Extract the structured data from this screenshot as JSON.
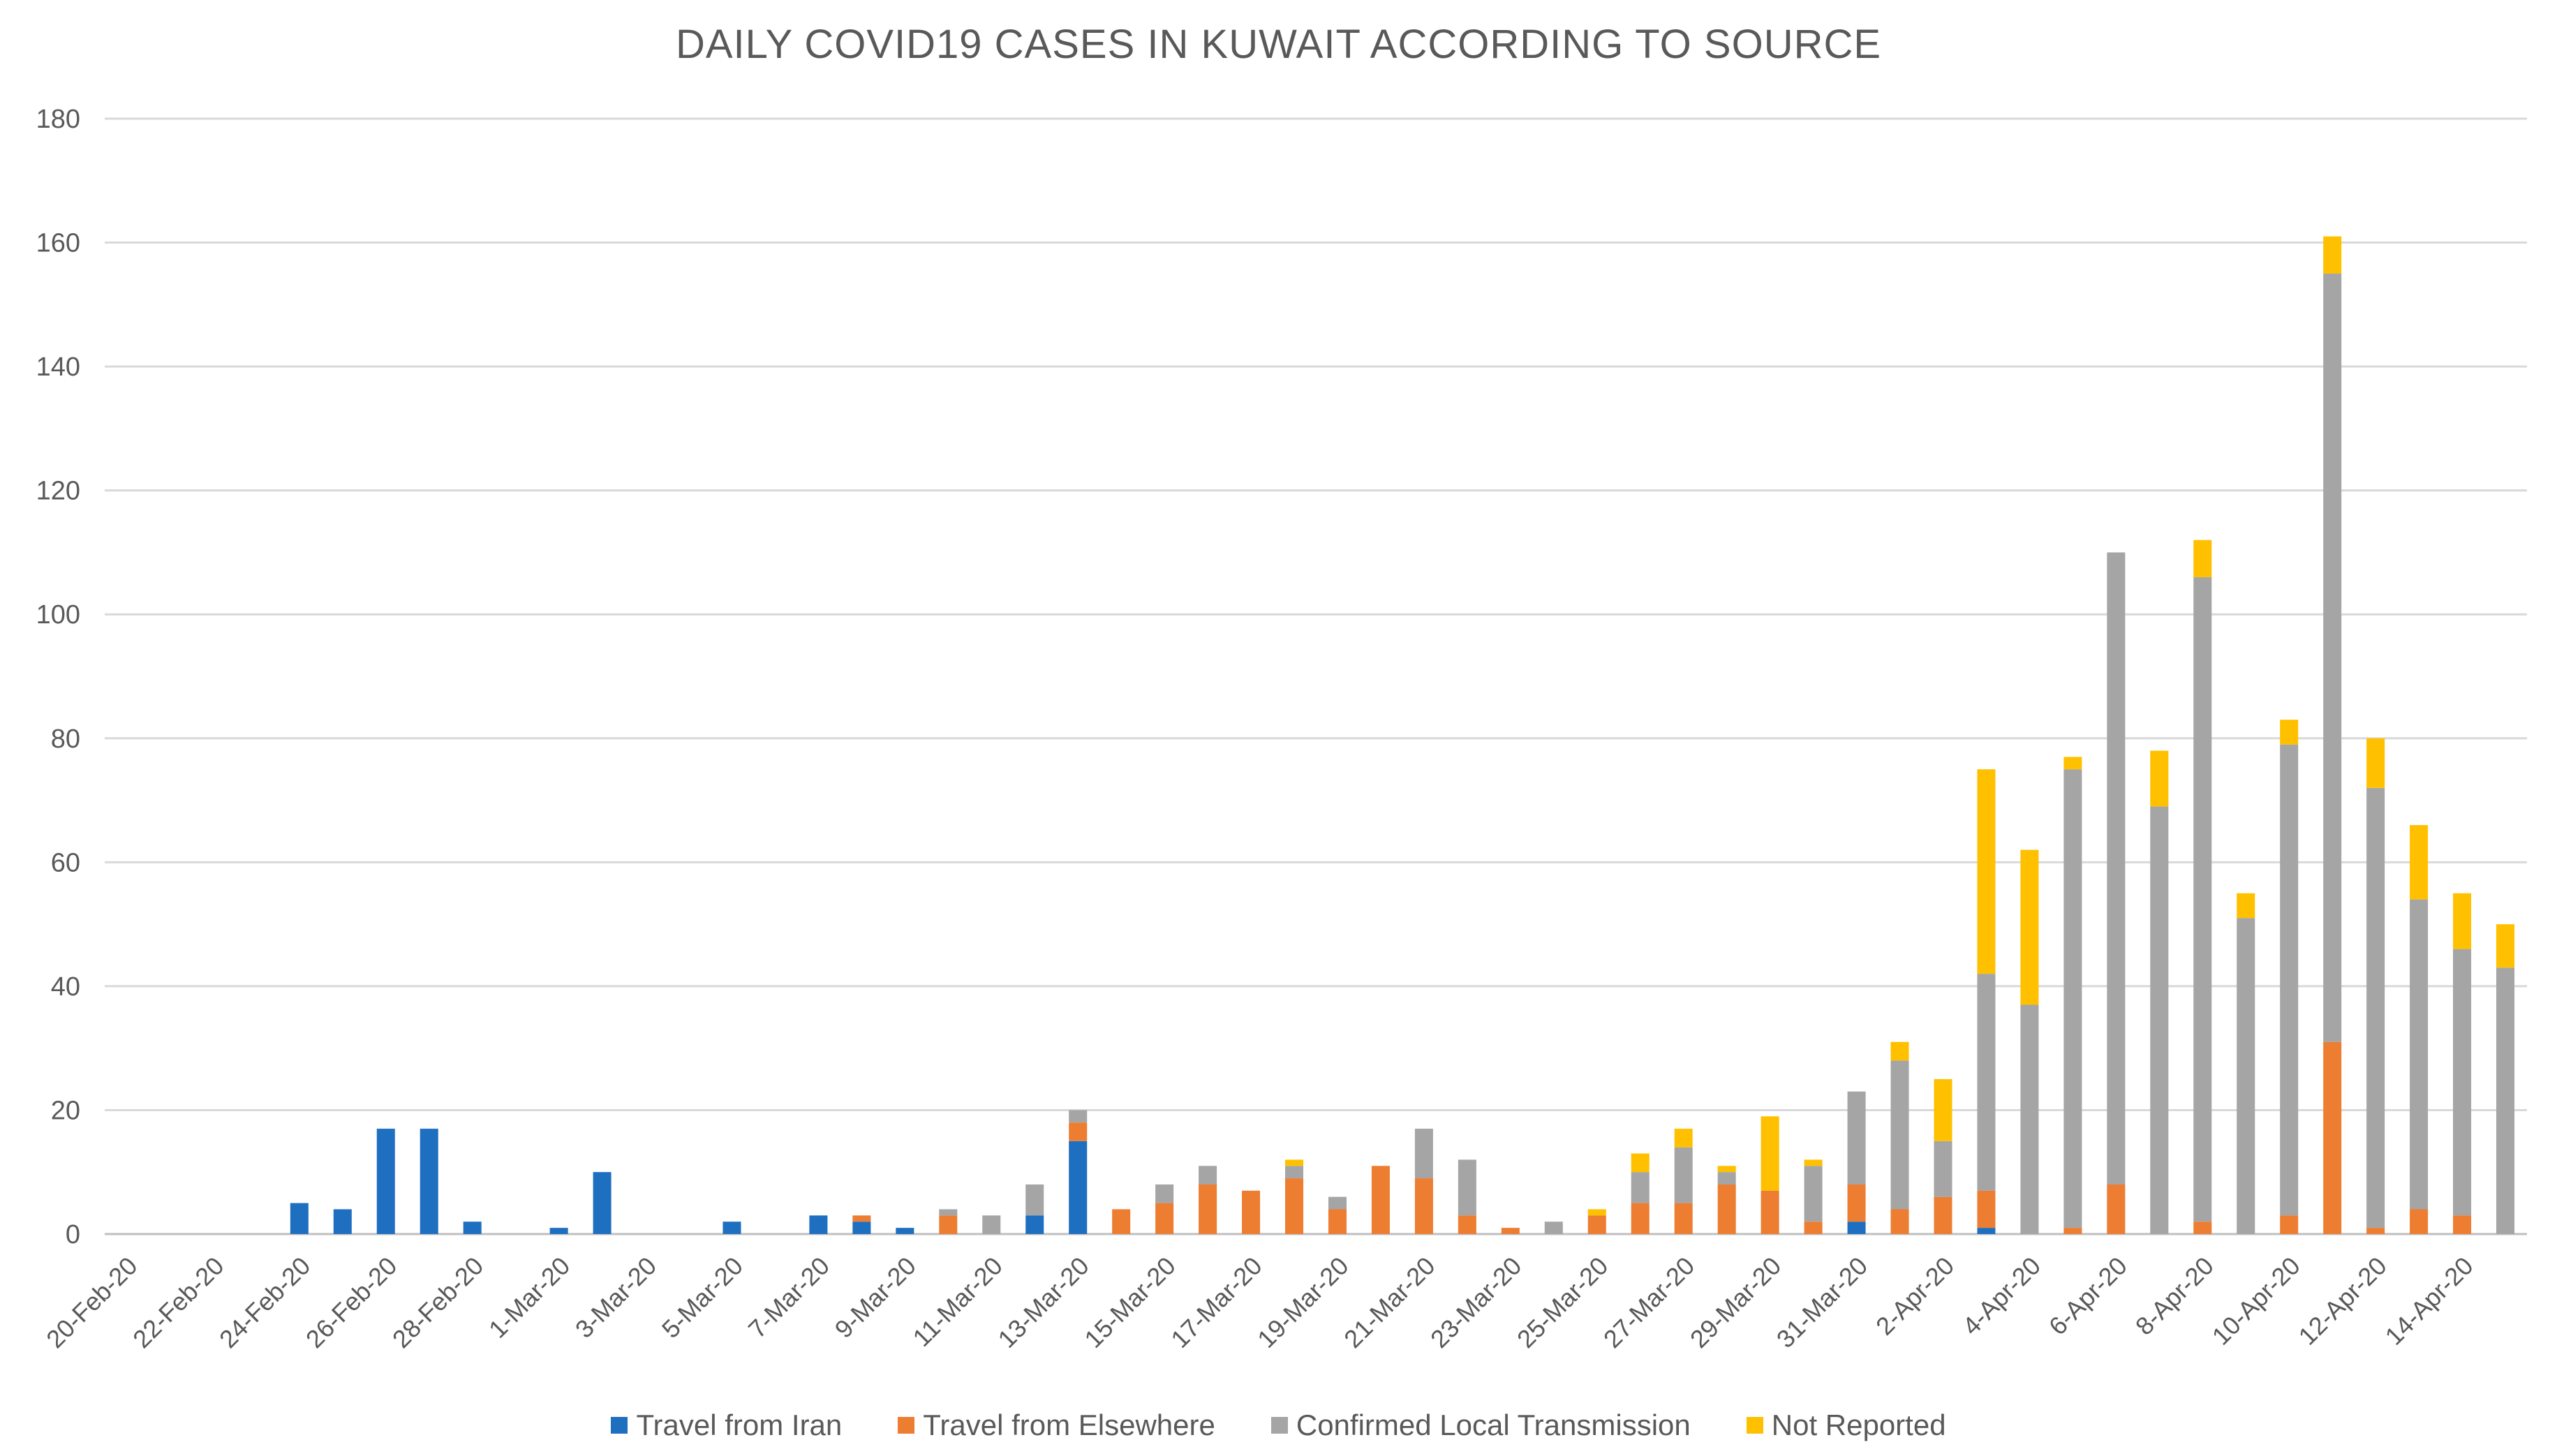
{
  "chart_data": {
    "type": "bar",
    "stacked": true,
    "title": "DAILY COVID19 CASES IN KUWAIT ACCORDING TO SOURCE",
    "xlabel": "",
    "ylabel": "",
    "ylim": [
      0,
      180
    ],
    "yticks": [
      0,
      20,
      40,
      60,
      80,
      100,
      120,
      140,
      160,
      180
    ],
    "grid": true,
    "legend_position": "bottom",
    "categories": [
      "20-Feb-20",
      "21-Feb-20",
      "22-Feb-20",
      "23-Feb-20",
      "24-Feb-20",
      "25-Feb-20",
      "26-Feb-20",
      "27-Feb-20",
      "28-Feb-20",
      "29-Feb-20",
      "1-Mar-20",
      "2-Mar-20",
      "3-Mar-20",
      "4-Mar-20",
      "5-Mar-20",
      "6-Mar-20",
      "7-Mar-20",
      "8-Mar-20",
      "9-Mar-20",
      "10-Mar-20",
      "11-Mar-20",
      "12-Mar-20",
      "13-Mar-20",
      "14-Mar-20",
      "15-Mar-20",
      "16-Mar-20",
      "17-Mar-20",
      "18-Mar-20",
      "19-Mar-20",
      "20-Mar-20",
      "21-Mar-20",
      "22-Mar-20",
      "23-Mar-20",
      "24-Mar-20",
      "25-Mar-20",
      "26-Mar-20",
      "27-Mar-20",
      "28-Mar-20",
      "29-Mar-20",
      "30-Mar-20",
      "31-Mar-20",
      "1-Apr-20",
      "2-Apr-20",
      "3-Apr-20",
      "4-Apr-20",
      "5-Apr-20",
      "6-Apr-20",
      "7-Apr-20",
      "8-Apr-20",
      "9-Apr-20",
      "10-Apr-20",
      "11-Apr-20",
      "12-Apr-20",
      "13-Apr-20",
      "14-Apr-20",
      "15-Apr-20"
    ],
    "xtick_labels": [
      "20-Feb-20",
      "22-Feb-20",
      "24-Feb-20",
      "26-Feb-20",
      "28-Feb-20",
      "1-Mar-20",
      "3-Mar-20",
      "5-Mar-20",
      "7-Mar-20",
      "9-Mar-20",
      "11-Mar-20",
      "13-Mar-20",
      "15-Mar-20",
      "17-Mar-20",
      "19-Mar-20",
      "21-Mar-20",
      "23-Mar-20",
      "25-Mar-20",
      "27-Mar-20",
      "29-Mar-20",
      "31-Mar-20",
      "2-Apr-20",
      "4-Apr-20",
      "6-Apr-20",
      "8-Apr-20",
      "10-Apr-20",
      "12-Apr-20",
      "14-Apr-20"
    ],
    "series": [
      {
        "name": "Travel from Iran",
        "color": "#1f6fc0",
        "values": [
          0,
          0,
          0,
          0,
          5,
          4,
          17,
          17,
          2,
          0,
          1,
          10,
          0,
          0,
          2,
          0,
          3,
          2,
          1,
          0,
          0,
          3,
          15,
          0,
          0,
          0,
          0,
          0,
          0,
          0,
          0,
          0,
          0,
          0,
          0,
          0,
          0,
          0,
          0,
          0,
          2,
          0,
          0,
          1,
          0,
          0,
          0,
          0,
          0,
          0,
          0,
          0,
          0,
          0,
          0,
          0
        ]
      },
      {
        "name": "Travel from Elsewhere",
        "color": "#ed7d31",
        "values": [
          0,
          0,
          0,
          0,
          0,
          0,
          0,
          0,
          0,
          0,
          0,
          0,
          0,
          0,
          0,
          0,
          0,
          1,
          0,
          3,
          0,
          0,
          3,
          4,
          5,
          8,
          7,
          9,
          4,
          11,
          9,
          3,
          1,
          0,
          3,
          5,
          5,
          8,
          7,
          2,
          6,
          4,
          6,
          6,
          0,
          1,
          8,
          0,
          2,
          0,
          3,
          31,
          1,
          4,
          3,
          0
        ]
      },
      {
        "name": "Confirmed Local Transmission",
        "color": "#a5a5a5",
        "values": [
          0,
          0,
          0,
          0,
          0,
          0,
          0,
          0,
          0,
          0,
          0,
          0,
          0,
          0,
          0,
          0,
          0,
          0,
          0,
          1,
          3,
          5,
          2,
          0,
          3,
          3,
          0,
          2,
          2,
          0,
          8,
          9,
          0,
          2,
          0,
          5,
          9,
          2,
          0,
          9,
          15,
          24,
          9,
          35,
          37,
          74,
          102,
          69,
          104,
          51,
          76,
          124,
          71,
          50,
          43,
          43
        ]
      },
      {
        "name": "Not Reported",
        "color": "#ffc000",
        "values": [
          0,
          0,
          0,
          0,
          0,
          0,
          0,
          0,
          0,
          0,
          0,
          0,
          0,
          0,
          0,
          0,
          0,
          0,
          0,
          0,
          0,
          0,
          0,
          0,
          0,
          0,
          0,
          1,
          0,
          0,
          0,
          0,
          0,
          0,
          1,
          3,
          3,
          1,
          12,
          1,
          0,
          3,
          10,
          33,
          25,
          2,
          0,
          9,
          6,
          4,
          4,
          6,
          8,
          12,
          9,
          7
        ]
      }
    ]
  }
}
